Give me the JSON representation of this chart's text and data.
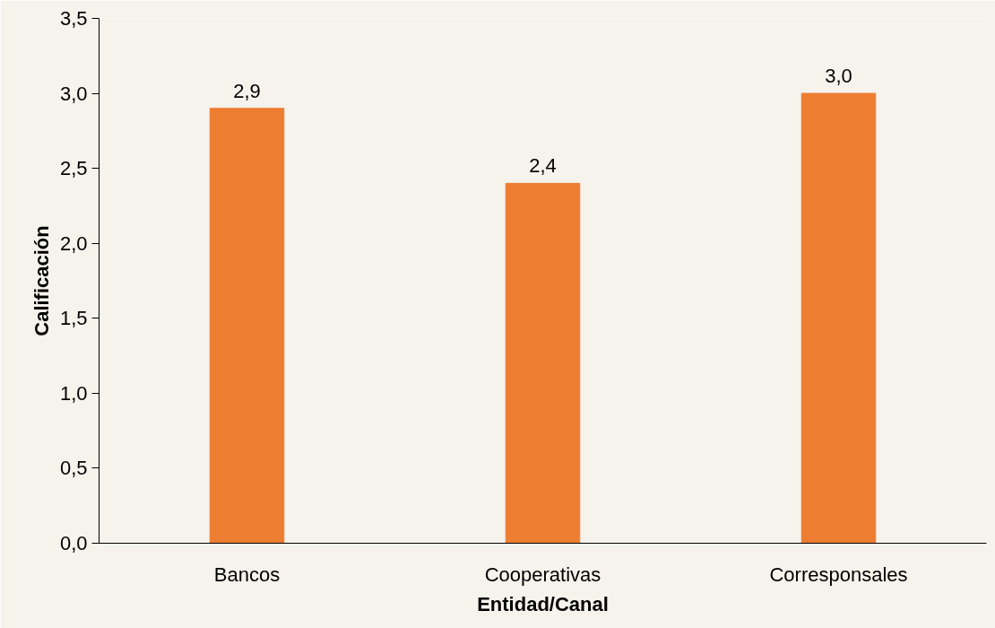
{
  "chart_data": {
    "type": "bar",
    "xlabel": "Entidad/Canal",
    "ylabel": "Calificación",
    "categories": [
      "Bancos",
      "Cooperativas",
      "Corresponsales"
    ],
    "values": [
      2.9,
      2.4,
      3.0
    ],
    "value_labels": [
      "2,9",
      "2,4",
      "3,0"
    ],
    "color": "#ed7d31",
    "ylim": [
      0,
      3.5
    ],
    "yticks": [
      {
        "value": 0,
        "label": "0,0"
      },
      {
        "value": 0.5,
        "label": "0,5"
      },
      {
        "value": 1,
        "label": "1,0"
      },
      {
        "value": 1.5,
        "label": "1,5"
      },
      {
        "value": 2,
        "label": "2,0"
      },
      {
        "value": 2.5,
        "label": "2,5"
      },
      {
        "value": 3,
        "label": "3,0"
      },
      {
        "value": 3.5,
        "label": "3,5"
      }
    ],
    "grid": false
  }
}
